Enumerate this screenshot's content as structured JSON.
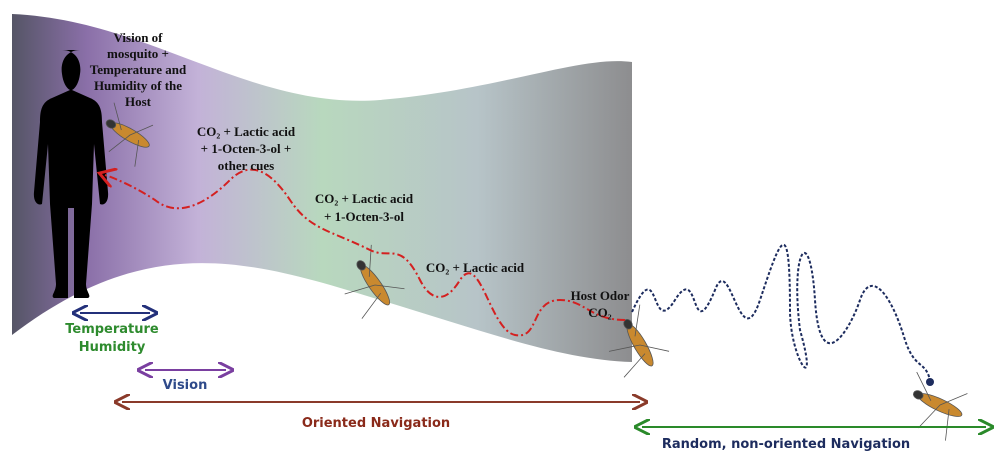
{
  "cue_labels": [
    {
      "lines": [
        "Vision of",
        "mosquito +",
        "Temperature and",
        "Humidity of the",
        "Host"
      ]
    },
    {
      "lines": [
        "CO₂ + Lactic acid",
        "+ 1-Octen-3-ol +",
        "other cues"
      ]
    },
    {
      "lines": [
        "CO₂ + Lactic acid",
        "+ 1-Octen-3-ol"
      ]
    },
    {
      "lines": [
        "CO₂ + Lactic acid"
      ]
    },
    {
      "lines": [
        "Host Odor",
        "CO₂"
      ]
    }
  ],
  "ranges": [
    {
      "lines": [
        "Temperature",
        "Humidity"
      ]
    },
    {
      "lines": [
        "Vision"
      ]
    },
    {
      "lines": [
        "Oriented Navigation"
      ]
    },
    {
      "lines": [
        "Random, non-oriented Navigation"
      ]
    }
  ]
}
